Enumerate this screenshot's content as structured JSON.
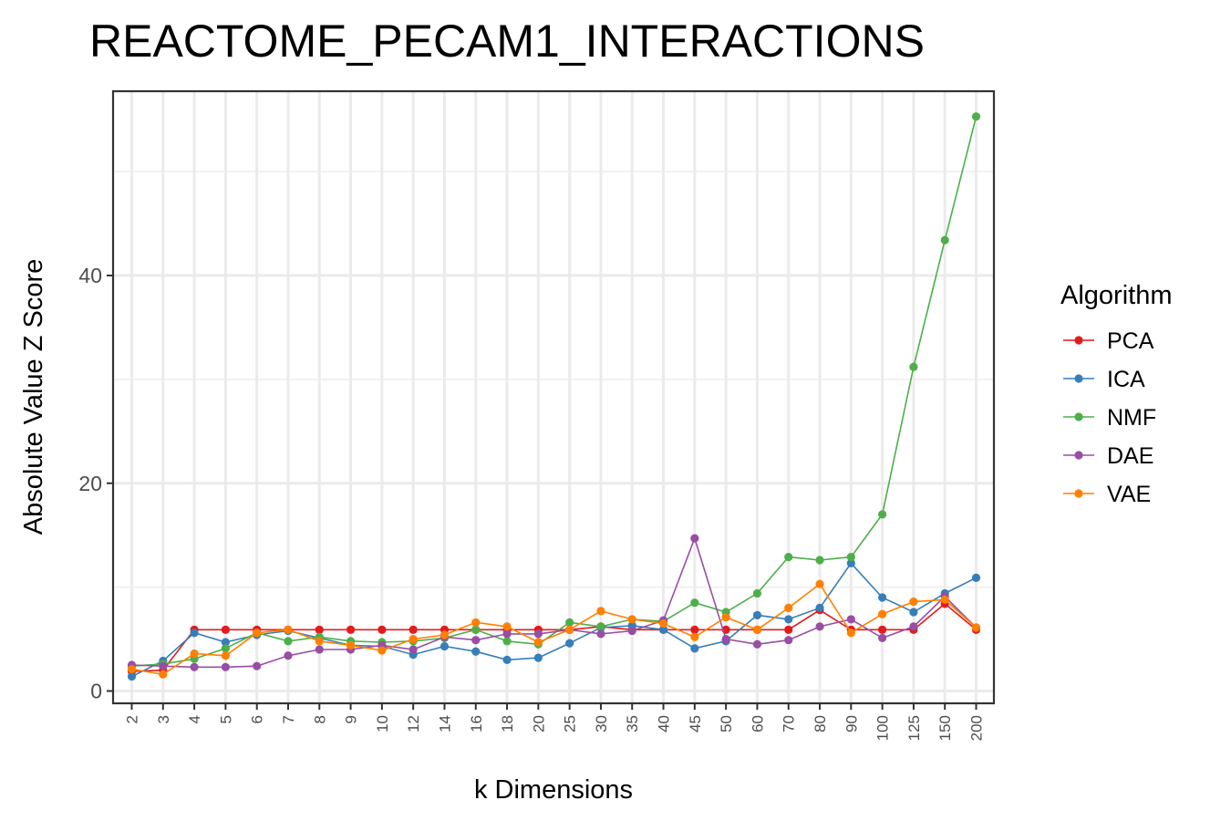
{
  "chart_data": {
    "type": "line",
    "title": "REACTOME_PECAM1_INTERACTIONS",
    "xlabel": "k Dimensions",
    "ylabel": "Absolute Value Z Score",
    "categories": [
      "2",
      "3",
      "4",
      "5",
      "6",
      "7",
      "8",
      "9",
      "10",
      "12",
      "14",
      "16",
      "18",
      "20",
      "25",
      "30",
      "35",
      "40",
      "45",
      "50",
      "60",
      "70",
      "80",
      "90",
      "100",
      "125",
      "150",
      "200"
    ],
    "yticks": [
      "0",
      "20",
      "40"
    ],
    "ylim": [
      -1.5,
      57
    ],
    "grid": true,
    "legend": {
      "title": "Algorithm",
      "placement": "right"
    },
    "series": [
      {
        "name": "PCA",
        "color": "#E41A1C",
        "values": [
          1.9,
          2.0,
          5.9,
          5.9,
          5.9,
          5.9,
          5.9,
          5.9,
          5.9,
          5.9,
          5.9,
          5.9,
          5.9,
          5.9,
          5.9,
          6.2,
          5.9,
          5.9,
          5.9,
          5.9,
          5.9,
          5.9,
          7.8,
          5.9,
          5.9,
          5.9,
          8.4,
          5.9
        ]
      },
      {
        "name": "ICA",
        "color": "#377EB8",
        "values": [
          1.4,
          2.9,
          5.6,
          4.7,
          5.4,
          5.8,
          5.1,
          4.4,
          4.3,
          3.5,
          4.3,
          3.8,
          3.0,
          3.2,
          4.6,
          6.1,
          6.3,
          5.9,
          4.1,
          4.8,
          7.3,
          6.9,
          8.0,
          12.3,
          9.0,
          7.6,
          9.4,
          10.9
        ]
      },
      {
        "name": "NMF",
        "color": "#4DAF4A",
        "values": [
          2.4,
          2.6,
          3.1,
          4.1,
          5.6,
          4.8,
          5.2,
          4.8,
          4.7,
          4.8,
          5.1,
          5.9,
          4.8,
          4.5,
          6.6,
          6.2,
          6.9,
          6.7,
          8.5,
          7.6,
          9.4,
          12.9,
          12.6,
          12.9,
          17.0,
          31.2,
          43.4,
          55.3
        ]
      },
      {
        "name": "DAE",
        "color": "#984EA3",
        "values": [
          2.5,
          2.4,
          2.3,
          2.3,
          2.4,
          3.4,
          4.0,
          4.0,
          4.4,
          4.0,
          5.2,
          4.9,
          5.5,
          5.5,
          5.9,
          5.5,
          5.8,
          6.8,
          14.7,
          5.0,
          4.5,
          4.9,
          6.2,
          6.9,
          5.1,
          6.2,
          9.1,
          6.1
        ]
      },
      {
        "name": "VAE",
        "color": "#FF7F00",
        "values": [
          2.1,
          1.6,
          3.6,
          3.4,
          5.6,
          5.9,
          4.8,
          4.4,
          3.9,
          5.0,
          5.4,
          6.6,
          6.2,
          4.7,
          5.9,
          7.7,
          6.9,
          6.5,
          5.2,
          7.1,
          5.9,
          8.0,
          10.3,
          5.6,
          7.4,
          8.6,
          8.8,
          6.1
        ]
      }
    ]
  }
}
